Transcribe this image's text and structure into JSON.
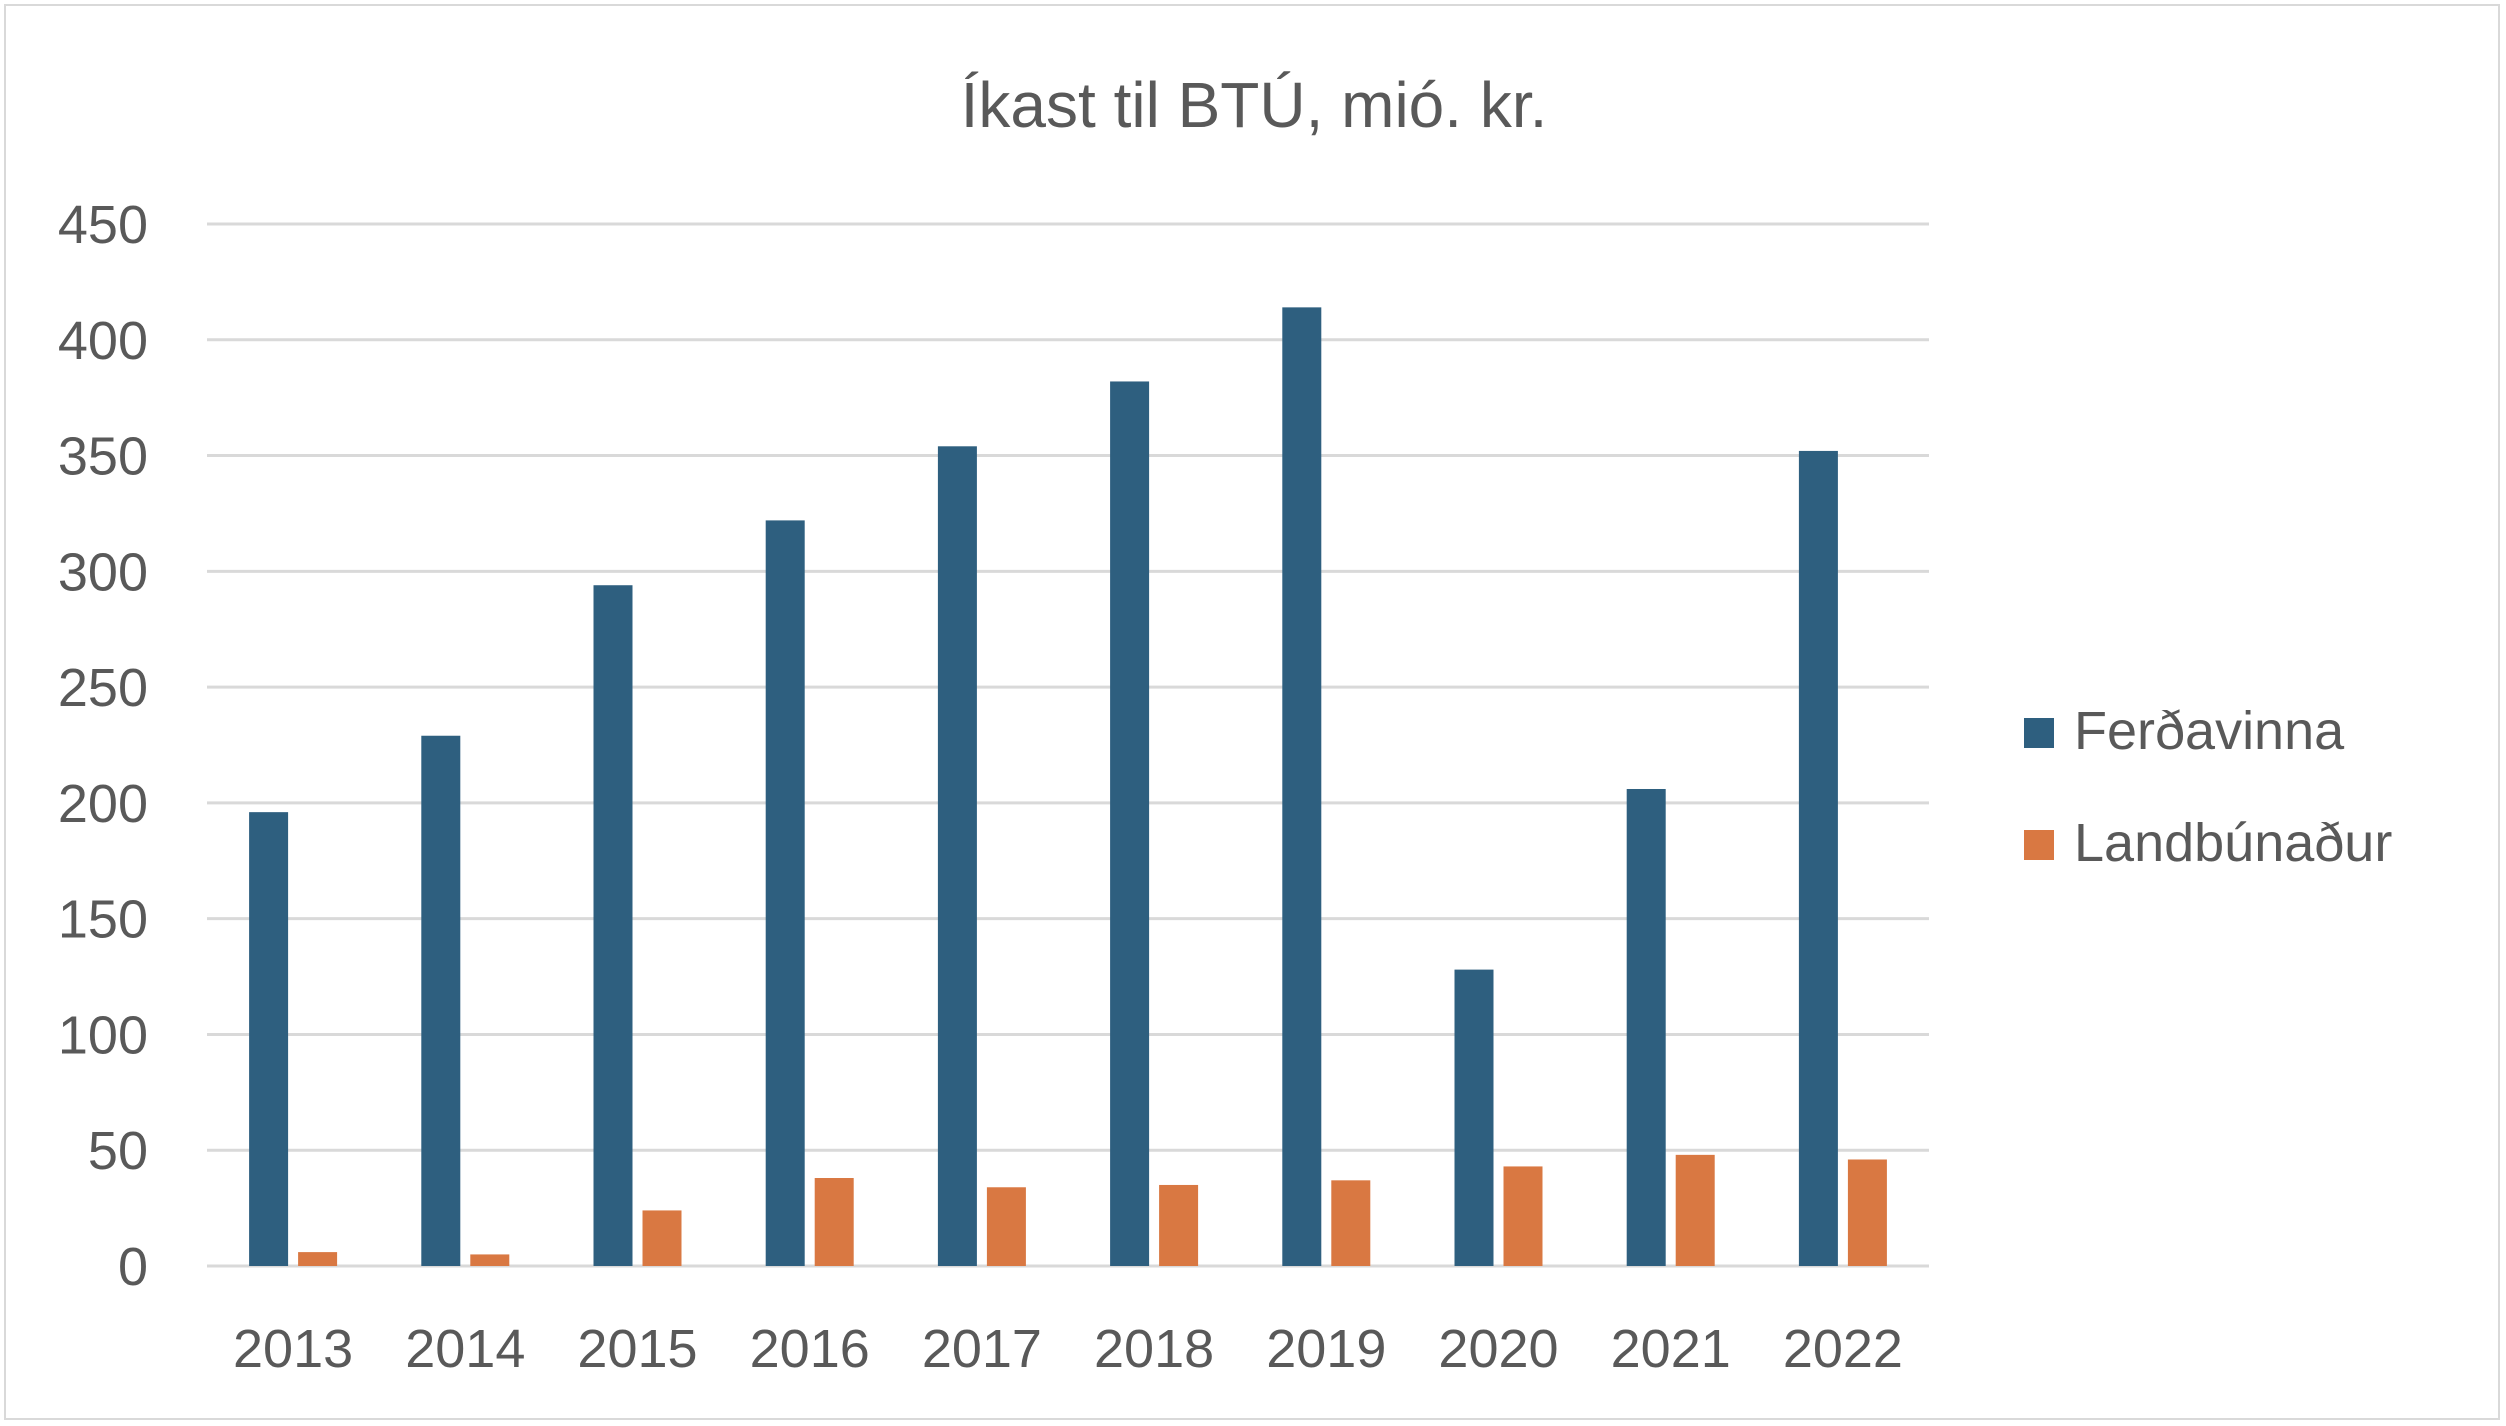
{
  "chart_data": {
    "type": "bar",
    "title": "Íkast til BTÚ, mió. kr.",
    "xlabel": "",
    "ylabel": "",
    "categories": [
      "2013",
      "2014",
      "2015",
      "2016",
      "2017",
      "2018",
      "2019",
      "2020",
      "2021",
      "2022"
    ],
    "series": [
      {
        "name": "Ferðavinna",
        "color": "#2e5f7f",
        "values": [
          196,
          229,
          294,
          322,
          354,
          382,
          414,
          128,
          206,
          352
        ]
      },
      {
        "name": "Landbúnaður",
        "color": "#d97842",
        "values": [
          6,
          5,
          24,
          38,
          34,
          35,
          37,
          43,
          48,
          46
        ]
      }
    ],
    "ylim": [
      0,
      450
    ],
    "yticks": [
      0,
      50,
      100,
      150,
      200,
      250,
      300,
      350,
      400,
      450
    ],
    "grid": true,
    "legend_position": "right"
  }
}
